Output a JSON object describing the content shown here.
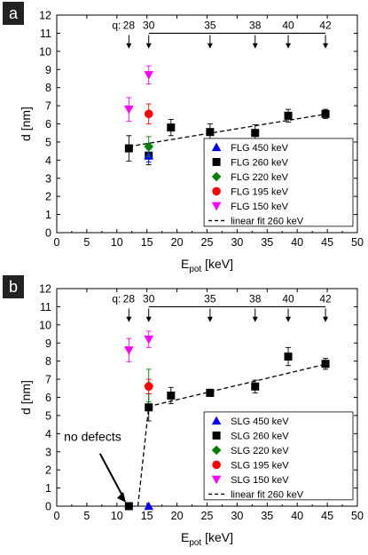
{
  "chart_data": [
    {
      "type": "scatter",
      "panel_label": "a",
      "xlabel_main": "E",
      "xlabel_sub": "pot",
      "xlabel_unit": " [keV]",
      "ylabel": "d [nm]",
      "xlim": [
        0,
        50
      ],
      "ylim": [
        0,
        12
      ],
      "xticks": [
        0,
        5,
        10,
        15,
        20,
        25,
        30,
        35,
        40,
        45,
        50
      ],
      "yticks": [
        0,
        1,
        2,
        3,
        4,
        5,
        6,
        7,
        8,
        9,
        10,
        11,
        12
      ],
      "grid": false,
      "legend_position": "bottom-right",
      "q_label": "q:",
      "q_marks": [
        {
          "q": "28",
          "x": 12.0
        },
        {
          "q": "30",
          "x": 15.3
        },
        {
          "q": "35",
          "x": 25.5
        },
        {
          "q": "38",
          "x": 33.0
        },
        {
          "q": "40",
          "x": 38.5
        },
        {
          "q": "42",
          "x": 44.7
        }
      ],
      "series": [
        {
          "name": "FLG 450 keV",
          "marker": "triangle-up",
          "color": "#0000ff",
          "points": [
            {
              "x": 15.3,
              "y": 4.25,
              "err": 0.35
            }
          ]
        },
        {
          "name": "FLG 260 keV",
          "marker": "square",
          "color": "#000000",
          "points": [
            {
              "x": 12.0,
              "y": 4.65,
              "err": 0.7
            },
            {
              "x": 15.3,
              "y": 4.25,
              "err": 0.5
            },
            {
              "x": 19.0,
              "y": 5.8,
              "err": 0.45
            },
            {
              "x": 25.5,
              "y": 5.55,
              "err": 0.45
            },
            {
              "x": 33.0,
              "y": 5.5,
              "err": 0.45
            },
            {
              "x": 38.5,
              "y": 6.45,
              "err": 0.35
            },
            {
              "x": 44.7,
              "y": 6.55,
              "err": 0.25
            }
          ]
        },
        {
          "name": "FLG 220 keV",
          "marker": "diamond",
          "color": "#008000",
          "points": [
            {
              "x": 15.3,
              "y": 4.75,
              "err": 0.55
            }
          ]
        },
        {
          "name": "FLG 195 keV",
          "marker": "circle",
          "color": "#ff0000",
          "points": [
            {
              "x": 15.3,
              "y": 6.55,
              "err": 0.55
            }
          ]
        },
        {
          "name": "FLG 150 keV",
          "marker": "triangle-down",
          "color": "#ff00ff",
          "points": [
            {
              "x": 12.0,
              "y": 6.8,
              "err": 0.65
            },
            {
              "x": 15.3,
              "y": 8.7,
              "err": 0.5
            }
          ]
        },
        {
          "name": "linear fit 260 keV",
          "marker": "dashed-line",
          "color": "#000000",
          "line": [
            {
              "x": 12.0,
              "y": 4.75
            },
            {
              "x": 45.0,
              "y": 6.55
            }
          ]
        }
      ]
    },
    {
      "type": "scatter",
      "panel_label": "b",
      "xlabel_main": "E",
      "xlabel_sub": "pot",
      "xlabel_unit": " [keV]",
      "ylabel": "d [nm]",
      "xlim": [
        0,
        50
      ],
      "ylim": [
        0,
        12
      ],
      "xticks": [
        0,
        5,
        10,
        15,
        20,
        25,
        30,
        35,
        40,
        45,
        50
      ],
      "yticks": [
        0,
        1,
        2,
        3,
        4,
        5,
        6,
        7,
        8,
        9,
        10,
        11,
        12
      ],
      "grid": false,
      "legend_position": "bottom-right",
      "q_label": "q:",
      "q_marks": [
        {
          "q": "28",
          "x": 12.0
        },
        {
          "q": "30",
          "x": 15.3
        },
        {
          "q": "35",
          "x": 25.5
        },
        {
          "q": "38",
          "x": 33.0
        },
        {
          "q": "40",
          "x": 38.5
        },
        {
          "q": "42",
          "x": 44.7
        }
      ],
      "annotation": {
        "text": "no defects",
        "arrow_to": {
          "x": 11.5,
          "y": 0.2
        }
      },
      "series": [
        {
          "name": "SLG 450 keV",
          "marker": "triangle-up",
          "color": "#0000ff",
          "points": [
            {
              "x": 15.3,
              "y": 0.0,
              "err": 0
            }
          ]
        },
        {
          "name": "SLG 260 keV",
          "marker": "square",
          "color": "#000000",
          "points": [
            {
              "x": 12.0,
              "y": 0.0,
              "err": 0
            },
            {
              "x": 15.3,
              "y": 5.45,
              "err": 0.75
            },
            {
              "x": 19.0,
              "y": 6.1,
              "err": 0.45
            },
            {
              "x": 25.5,
              "y": 6.25,
              "err": 0.2
            },
            {
              "x": 33.0,
              "y": 6.6,
              "err": 0.35
            },
            {
              "x": 38.5,
              "y": 8.25,
              "err": 0.5
            },
            {
              "x": 44.7,
              "y": 7.85,
              "err": 0.3
            }
          ]
        },
        {
          "name": "SLG 220 keV",
          "marker": "diamond",
          "color": "#008000",
          "points": [
            {
              "x": 15.3,
              "y": 6.65,
              "err": 0.9
            }
          ]
        },
        {
          "name": "SLG 195 keV",
          "marker": "circle",
          "color": "#ff0000",
          "points": [
            {
              "x": 15.3,
              "y": 6.6,
              "err": 0.4
            }
          ]
        },
        {
          "name": "SLG 150 keV",
          "marker": "triangle-down",
          "color": "#ff00ff",
          "points": [
            {
              "x": 12.0,
              "y": 8.6,
              "err": 0.65
            },
            {
              "x": 15.3,
              "y": 9.2,
              "err": 0.45
            }
          ]
        },
        {
          "name": "linear fit 260 keV",
          "marker": "dashed-line",
          "color": "#000000",
          "line": [
            {
              "x": 13.5,
              "y": 0.0
            },
            {
              "x": 15.3,
              "y": 5.5
            },
            {
              "x": 45.0,
              "y": 7.85
            }
          ]
        }
      ]
    }
  ]
}
